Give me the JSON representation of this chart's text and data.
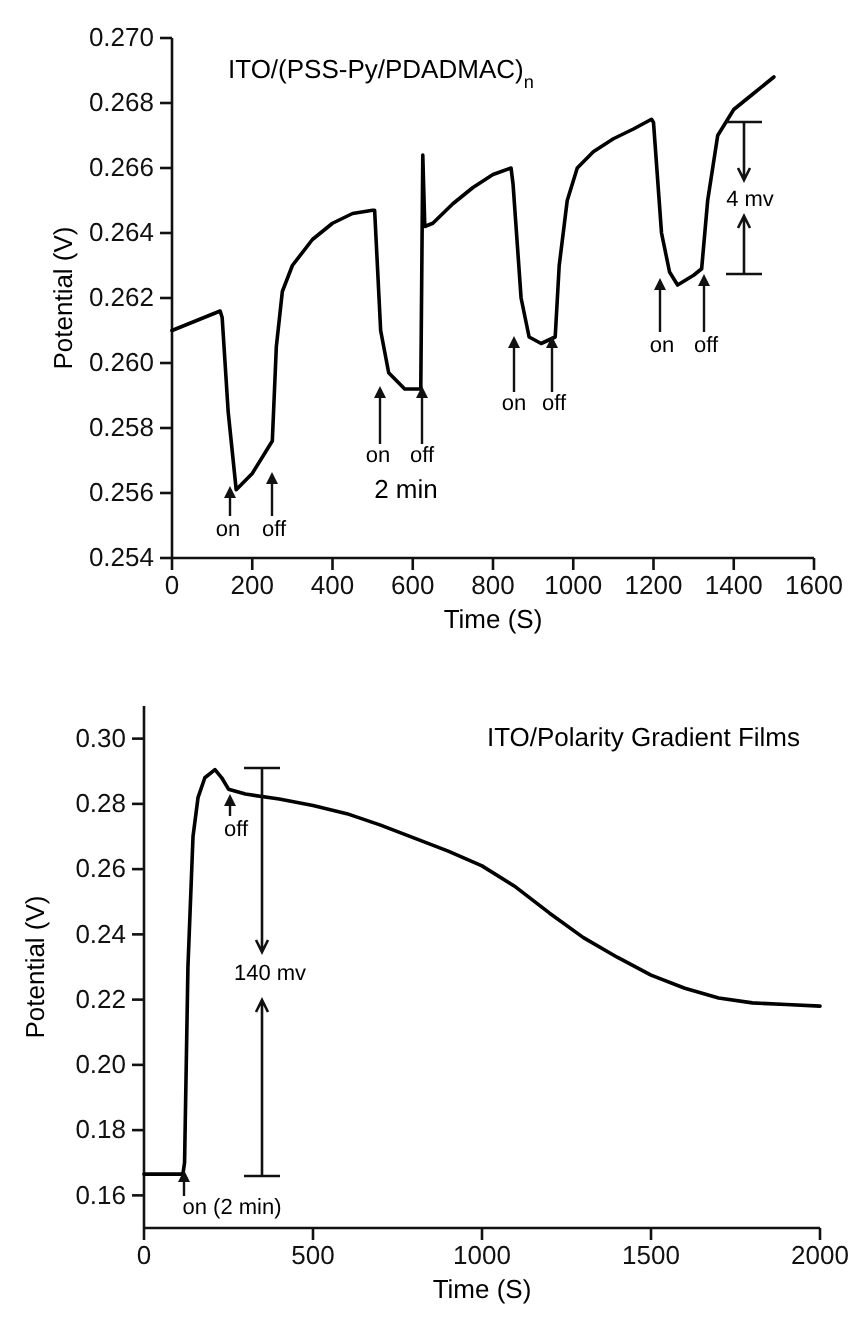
{
  "chart_data": [
    {
      "type": "line",
      "title": "ITO/(PSS-Py/PDADMAC)$_{n}$",
      "xlabel": "Time (S)",
      "ylabel": "Potential (V)",
      "x": [
        0,
        60,
        120,
        125,
        140,
        160,
        200,
        240,
        250,
        260,
        275,
        300,
        350,
        400,
        450,
        500,
        505,
        520,
        540,
        580,
        620,
        625,
        630,
        650,
        700,
        750,
        800,
        845,
        850,
        870,
        890,
        920,
        955,
        965,
        985,
        1010,
        1050,
        1100,
        1150,
        1195,
        1200,
        1220,
        1240,
        1260,
        1300,
        1320,
        1335,
        1360,
        1400,
        1450,
        1500
      ],
      "series": [
        {
          "color": "#000000",
          "values": [
            0.261,
            0.2613,
            0.2616,
            0.2614,
            0.2585,
            0.2561,
            0.2566,
            0.2574,
            0.2576,
            0.2605,
            0.2622,
            0.263,
            0.2638,
            0.2643,
            0.2646,
            0.2647,
            0.2647,
            0.261,
            0.2597,
            0.2592,
            0.2592,
            0.2664,
            0.2642,
            0.2643,
            0.2649,
            0.2654,
            0.2658,
            0.266,
            0.2655,
            0.262,
            0.2608,
            0.2606,
            0.2608,
            0.263,
            0.265,
            0.266,
            0.2665,
            0.2669,
            0.2672,
            0.2675,
            0.2674,
            0.264,
            0.2628,
            0.2624,
            0.2627,
            0.2629,
            0.265,
            0.267,
            0.2678,
            0.2683,
            0.2688
          ]
        }
      ],
      "xlim": [
        0,
        1600
      ],
      "xticks": [
        0,
        200,
        400,
        600,
        800,
        1000,
        1200,
        1400,
        1600
      ],
      "ylim": [
        0.254,
        0.27
      ],
      "yticks": [
        0.254,
        0.256,
        0.258,
        {
          "value": 0.26,
          "label": "0.260"
        },
        0.262,
        0.264,
        0.266,
        0.268,
        {
          "value": 0.27,
          "label": "0.270"
        }
      ],
      "grid": false,
      "marker": "none",
      "line_style": "solid",
      "annotations": [
        "on",
        "off",
        "on",
        "off",
        "2 min",
        "on",
        "off",
        "on",
        "off",
        "4 mv"
      ]
    },
    {
      "type": "line",
      "title": "ITO/Polarity Gradient Films",
      "xlabel": "Time (S)",
      "ylabel": "Potential (V)",
      "x": [
        0,
        115,
        120,
        130,
        145,
        160,
        180,
        210,
        230,
        250,
        300,
        400,
        500,
        600,
        700,
        800,
        900,
        1000,
        1100,
        1200,
        1300,
        1400,
        1500,
        1600,
        1700,
        1800,
        1900,
        2000
      ],
      "series": [
        {
          "color": "#000000",
          "values": [
            0.1665,
            0.1665,
            0.17,
            0.23,
            0.27,
            0.282,
            0.288,
            0.2905,
            0.288,
            0.2845,
            0.283,
            0.2815,
            0.2795,
            0.277,
            0.2735,
            0.2695,
            0.2655,
            0.261,
            0.2545,
            0.2465,
            0.239,
            0.233,
            0.2275,
            0.2235,
            0.2205,
            0.219,
            0.2185,
            0.218
          ]
        }
      ],
      "xlim": [
        0,
        2000
      ],
      "xticks": [
        0,
        500,
        1000,
        1500,
        2000
      ],
      "ylim": [
        0.15,
        0.31
      ],
      "yticks": [
        0.16,
        0.18,
        {
          "value": 0.2,
          "label": "0.20"
        },
        0.22,
        0.24,
        0.26,
        0.28,
        {
          "value": 0.3,
          "label": "0.30"
        }
      ],
      "grid": false,
      "marker": "none",
      "line_style": "solid",
      "annotations": [
        "off",
        "on (2 min)",
        "140 mv"
      ]
    }
  ]
}
